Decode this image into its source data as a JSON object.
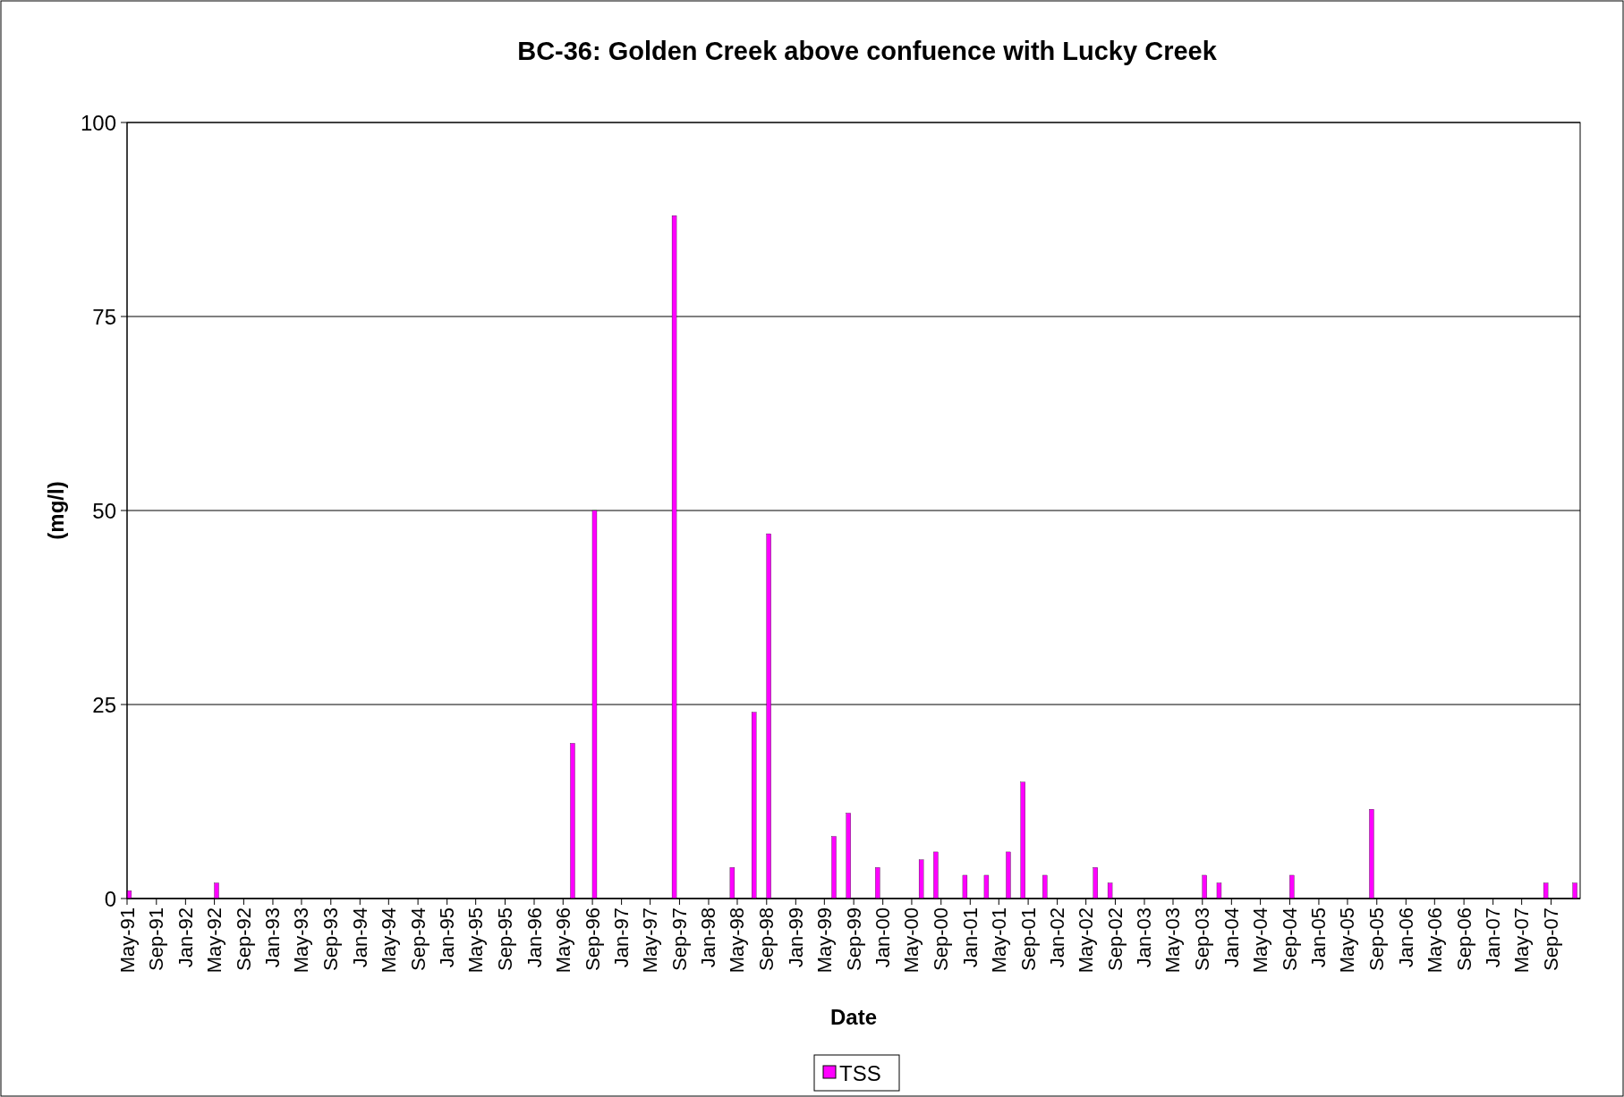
{
  "chart_data": {
    "type": "bar",
    "title": "BC-36: Golden Creek above confuence with Lucky Creek",
    "xlabel": "Date",
    "ylabel": "(mg/l)",
    "x": [
      "1991-05-10",
      "1992-05-10",
      "1996-06-10",
      "1996-09-10",
      "1997-08-10",
      "1998-04-10",
      "1998-07-10",
      "1998-09-10",
      "1999-06-10",
      "1999-08-10",
      "1999-12-10",
      "2000-06-10",
      "2000-08-10",
      "2000-12-10",
      "2001-03-10",
      "2001-06-10",
      "2001-08-10",
      "2001-11-10",
      "2002-06-10",
      "2002-08-10",
      "2003-09-10",
      "2003-11-10",
      "2004-09-10",
      "2005-08-10",
      "2007-08-10",
      "2007-12-10"
    ],
    "series": [
      {
        "name": "TSS",
        "color": "#ff00ff",
        "values": [
          1,
          2,
          20,
          50,
          88,
          4,
          24,
          47,
          8,
          11,
          4,
          5,
          6,
          3,
          3,
          6,
          15,
          3,
          4,
          2,
          3,
          2,
          3,
          11.5,
          2,
          2
        ]
      }
    ],
    "xlim": [
      "1991-05-01",
      "2008-01-01"
    ],
    "xticks": [
      {
        "value": "1991-05-01",
        "label": "May-91"
      },
      {
        "value": "1991-09-01",
        "label": "Sep-91"
      },
      {
        "value": "1992-01-01",
        "label": "Jan-92"
      },
      {
        "value": "1992-05-01",
        "label": "May-92"
      },
      {
        "value": "1992-09-01",
        "label": "Sep-92"
      },
      {
        "value": "1993-01-01",
        "label": "Jan-93"
      },
      {
        "value": "1993-05-01",
        "label": "May-93"
      },
      {
        "value": "1993-09-01",
        "label": "Sep-93"
      },
      {
        "value": "1994-01-01",
        "label": "Jan-94"
      },
      {
        "value": "1994-05-01",
        "label": "May-94"
      },
      {
        "value": "1994-09-01",
        "label": "Sep-94"
      },
      {
        "value": "1995-01-01",
        "label": "Jan-95"
      },
      {
        "value": "1995-05-01",
        "label": "May-95"
      },
      {
        "value": "1995-09-01",
        "label": "Sep-95"
      },
      {
        "value": "1996-01-01",
        "label": "Jan-96"
      },
      {
        "value": "1996-05-01",
        "label": "May-96"
      },
      {
        "value": "1996-09-01",
        "label": "Sep-96"
      },
      {
        "value": "1997-01-01",
        "label": "Jan-97"
      },
      {
        "value": "1997-05-01",
        "label": "May-97"
      },
      {
        "value": "1997-09-01",
        "label": "Sep-97"
      },
      {
        "value": "1998-01-01",
        "label": "Jan-98"
      },
      {
        "value": "1998-05-01",
        "label": "May-98"
      },
      {
        "value": "1998-09-01",
        "label": "Sep-98"
      },
      {
        "value": "1999-01-01",
        "label": "Jan-99"
      },
      {
        "value": "1999-05-01",
        "label": "May-99"
      },
      {
        "value": "1999-09-01",
        "label": "Sep-99"
      },
      {
        "value": "2000-01-01",
        "label": "Jan-00"
      },
      {
        "value": "2000-05-01",
        "label": "May-00"
      },
      {
        "value": "2000-09-01",
        "label": "Sep-00"
      },
      {
        "value": "2001-01-01",
        "label": "Jan-01"
      },
      {
        "value": "2001-05-01",
        "label": "May-01"
      },
      {
        "value": "2001-09-01",
        "label": "Sep-01"
      },
      {
        "value": "2002-01-01",
        "label": "Jan-02"
      },
      {
        "value": "2002-05-01",
        "label": "May-02"
      },
      {
        "value": "2002-09-01",
        "label": "Sep-02"
      },
      {
        "value": "2003-01-01",
        "label": "Jan-03"
      },
      {
        "value": "2003-05-01",
        "label": "May-03"
      },
      {
        "value": "2003-09-01",
        "label": "Sep-03"
      },
      {
        "value": "2004-01-01",
        "label": "Jan-04"
      },
      {
        "value": "2004-05-01",
        "label": "May-04"
      },
      {
        "value": "2004-09-01",
        "label": "Sep-04"
      },
      {
        "value": "2005-01-01",
        "label": "Jan-05"
      },
      {
        "value": "2005-05-01",
        "label": "May-05"
      },
      {
        "value": "2005-09-01",
        "label": "Sep-05"
      },
      {
        "value": "2006-01-01",
        "label": "Jan-06"
      },
      {
        "value": "2006-05-01",
        "label": "May-06"
      },
      {
        "value": "2006-09-01",
        "label": "Sep-06"
      },
      {
        "value": "2007-01-01",
        "label": "Jan-07"
      },
      {
        "value": "2007-05-01",
        "label": "May-07"
      },
      {
        "value": "2007-09-01",
        "label": "Sep-07"
      }
    ],
    "ylim": [
      0,
      100
    ],
    "yticks": [
      0,
      25,
      50,
      75,
      100
    ],
    "grid": "y",
    "legend": "bottom"
  }
}
